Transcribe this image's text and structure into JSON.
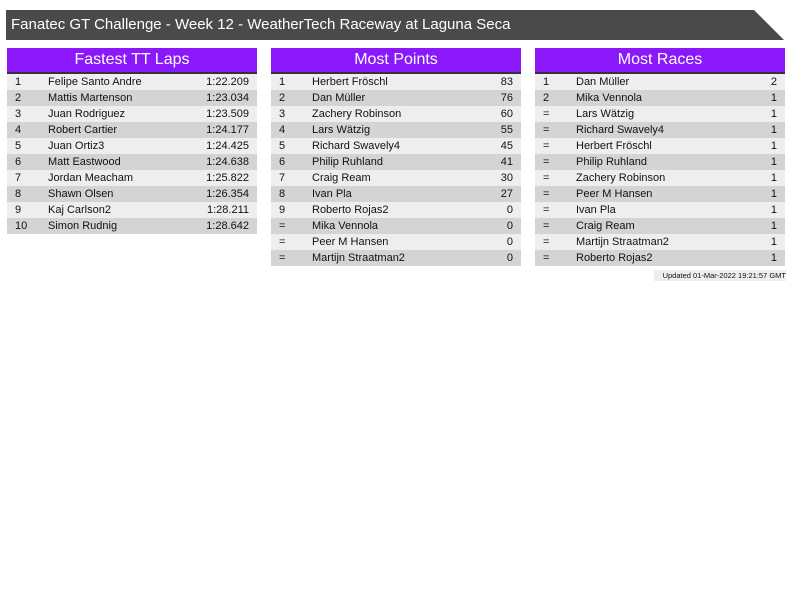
{
  "title": "Fanatec GT Challenge - Week 12 - WeatherTech Raceway at Laguna Seca",
  "colors": {
    "header_bar": "#4a4a4a",
    "panel_header": "#8a18fb",
    "row_light": "#eeeeee",
    "row_dark": "#d4d4d4"
  },
  "panels": [
    {
      "title": "Fastest TT Laps",
      "rows": [
        [
          "1",
          "Felipe Santo Andre",
          "1:22.209"
        ],
        [
          "2",
          "Mattis Martenson",
          "1:23.034"
        ],
        [
          "3",
          "Juan Rodriguez",
          "1:23.509"
        ],
        [
          "4",
          "Robert Cartier",
          "1:24.177"
        ],
        [
          "5",
          "Juan Ortiz3",
          "1:24.425"
        ],
        [
          "6",
          "Matt Eastwood",
          "1:24.638"
        ],
        [
          "7",
          "Jordan Meacham",
          "1:25.822"
        ],
        [
          "8",
          "Shawn Olsen",
          "1:26.354"
        ],
        [
          "9",
          "Kaj Carlson2",
          "1:28.211"
        ],
        [
          "10",
          "Simon Rudnig",
          "1:28.642"
        ]
      ]
    },
    {
      "title": "Most Points",
      "rows": [
        [
          "1",
          "Herbert Fröschl",
          "83"
        ],
        [
          "2",
          "Dan Müller",
          "76"
        ],
        [
          "3",
          "Zachery Robinson",
          "60"
        ],
        [
          "4",
          "Lars Wätzig",
          "55"
        ],
        [
          "5",
          "Richard Swavely4",
          "45"
        ],
        [
          "6",
          "Philip Ruhland",
          "41"
        ],
        [
          "7",
          "Craig Ream",
          "30"
        ],
        [
          "8",
          "Ivan Pla",
          "27"
        ],
        [
          "9",
          "Roberto Rojas2",
          "0"
        ],
        [
          "=",
          "Mika Vennola",
          "0"
        ],
        [
          "=",
          "Peer M Hansen",
          "0"
        ],
        [
          "=",
          "Martijn Straatman2",
          "0"
        ]
      ]
    },
    {
      "title": "Most Races",
      "rows": [
        [
          "1",
          "Dan Müller",
          "2"
        ],
        [
          "2",
          "Mika Vennola",
          "1"
        ],
        [
          "=",
          "Lars Wätzig",
          "1"
        ],
        [
          "=",
          "Richard Swavely4",
          "1"
        ],
        [
          "=",
          "Herbert Fröschl",
          "1"
        ],
        [
          "=",
          "Philip Ruhland",
          "1"
        ],
        [
          "=",
          "Zachery Robinson",
          "1"
        ],
        [
          "=",
          "Peer M Hansen",
          "1"
        ],
        [
          "=",
          "Ivan Pla",
          "1"
        ],
        [
          "=",
          "Craig Ream",
          "1"
        ],
        [
          "=",
          "Martijn Straatman2",
          "1"
        ],
        [
          "=",
          "Roberto Rojas2",
          "1"
        ]
      ]
    }
  ],
  "updated": "Updated 01-Mar-2022 19:21:57 GMT"
}
